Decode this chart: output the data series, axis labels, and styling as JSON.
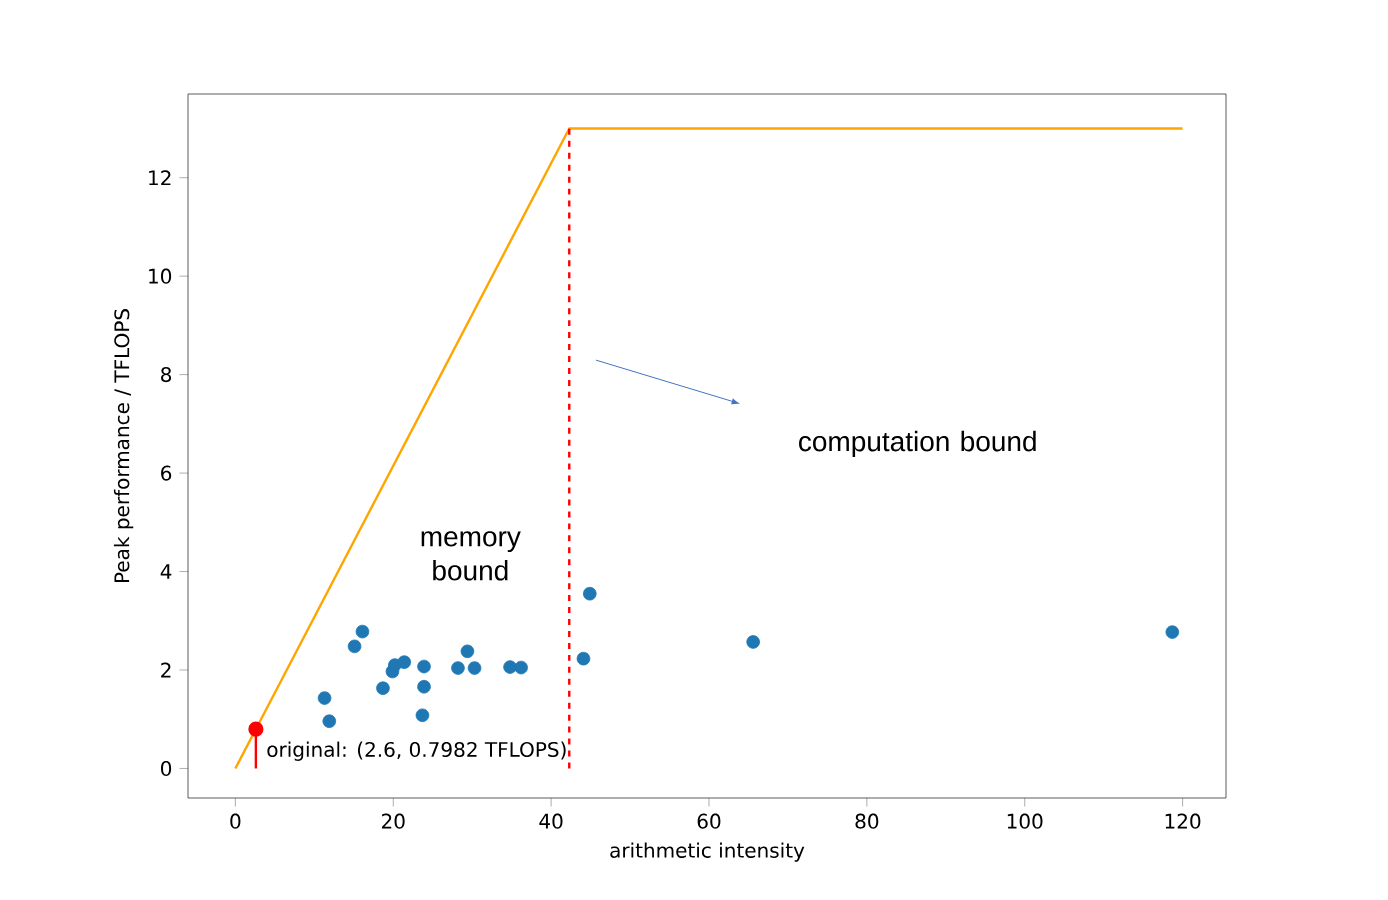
{
  "chart_data": {
    "type": "scatter",
    "xlabel": "arithmetic intensity",
    "ylabel": "Peak performance / TFLOPS",
    "xlim": [
      -6,
      125.5
    ],
    "ylim": [
      -0.6,
      13.7
    ],
    "xticks": [
      0,
      20,
      40,
      60,
      80,
      100,
      120
    ],
    "yticks": [
      0,
      2,
      4,
      6,
      8,
      10,
      12
    ],
    "series": [
      {
        "type": "line",
        "color": "#ffa500",
        "x": [
          0,
          42.3,
          120
        ],
        "values": [
          0,
          13,
          13
        ]
      },
      {
        "type": "line",
        "color": "#ff0000",
        "line_style": "dashed",
        "x": [
          42.3,
          42.3
        ],
        "values": [
          0,
          13
        ]
      },
      {
        "color": "#1f77b4",
        "marker": "circle",
        "x": [
          11.3,
          11.9,
          15.1,
          16.1,
          18.7,
          19.9,
          20.2,
          21.4,
          23.9,
          23.9,
          23.7,
          28.2,
          29.4,
          30.3,
          34.8,
          36.2,
          44.1,
          44.9,
          65.6,
          118.7
        ],
        "values": [
          1.43,
          0.96,
          2.48,
          2.78,
          1.63,
          1.97,
          2.1,
          2.16,
          2.07,
          1.66,
          1.08,
          2.04,
          2.38,
          2.04,
          2.06,
          2.05,
          2.23,
          3.55,
          2.57,
          2.77
        ]
      },
      {
        "type": "lollipop",
        "color": "#ff0000",
        "marker": "circle",
        "x": [
          2.6
        ],
        "values": [
          0.7982
        ]
      }
    ],
    "annotations": [
      {
        "text": "original: (2.6, 0.7982 TFLOPS)",
        "x": 2.6,
        "y": 0.7982
      },
      "memory bound",
      "computation bound"
    ]
  }
}
